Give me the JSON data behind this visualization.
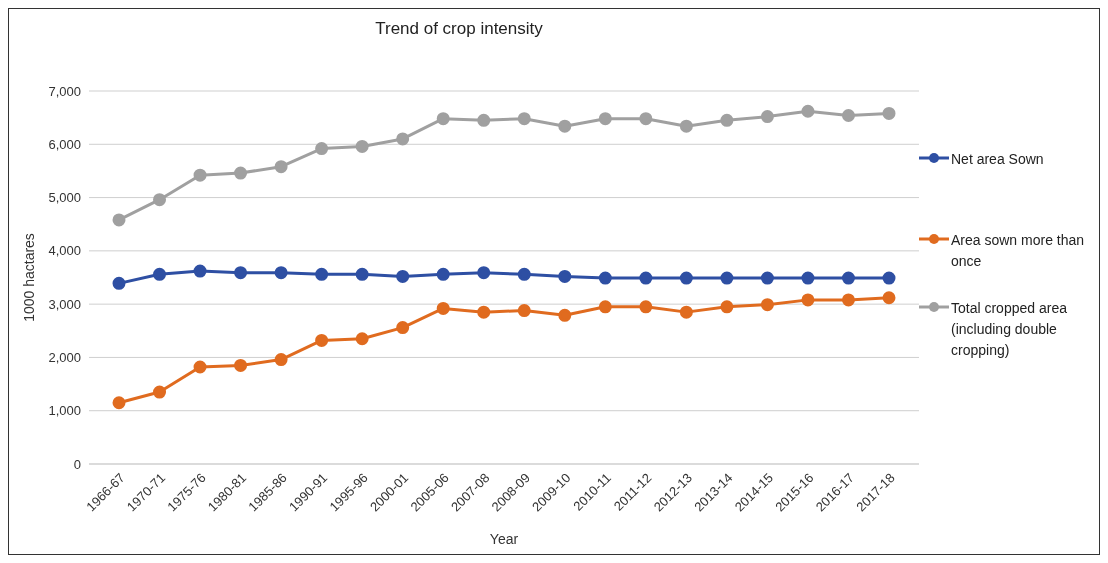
{
  "chart_data": {
    "type": "line",
    "title": "Trend of crop intensity",
    "xlabel": "Year",
    "ylabel": "1000 hactares",
    "categories": [
      "1966-67",
      "1970-71",
      "1975-76",
      "1980-81",
      "1985-86",
      "1990-91",
      "1995-96",
      "2000-01",
      "2005-06",
      "2007-08",
      "2008-09",
      "2009-10",
      "2010-11",
      "2011-12",
      "2012-13",
      "2013-14",
      "2014-15",
      "2015-16",
      "2016-17",
      "2017-18"
    ],
    "series": [
      {
        "name": "Net area Sown",
        "color": "#2e4fa3",
        "values": [
          3390,
          3560,
          3620,
          3590,
          3590,
          3560,
          3560,
          3520,
          3560,
          3590,
          3560,
          3520,
          3490,
          3490,
          3490,
          3490,
          3490,
          3490,
          3490,
          3490
        ]
      },
      {
        "name": "Area sown more than once",
        "color": "#e06b1f",
        "values": [
          1150,
          1350,
          1820,
          1850,
          1960,
          2320,
          2350,
          2560,
          2920,
          2850,
          2880,
          2790,
          2950,
          2950,
          2850,
          2950,
          2990,
          3080,
          3080,
          3120
        ]
      },
      {
        "name": "Total cropped area (including double cropping)",
        "color": "#a0a0a0",
        "values": [
          4580,
          4960,
          5420,
          5460,
          5580,
          5920,
          5960,
          6100,
          6480,
          6450,
          6480,
          6340,
          6480,
          6480,
          6340,
          6450,
          6520,
          6620,
          6540,
          6580
        ]
      }
    ],
    "ylim": [
      0,
      7000
    ],
    "yticks": [
      0,
      {
        "value": 1000,
        "label": "1,000"
      },
      {
        "value": 2000,
        "label": "2,000"
      },
      {
        "value": 3000,
        "label": "3,000"
      },
      {
        "value": 4000,
        "label": "4,000"
      },
      {
        "value": 5000,
        "label": "5,000"
      },
      {
        "value": 6000,
        "label": "6,000"
      },
      {
        "value": 7000,
        "label": "7,000"
      }
    ],
    "grid": "y",
    "legend": "right",
    "marker": "circle",
    "line_style": "solid"
  }
}
